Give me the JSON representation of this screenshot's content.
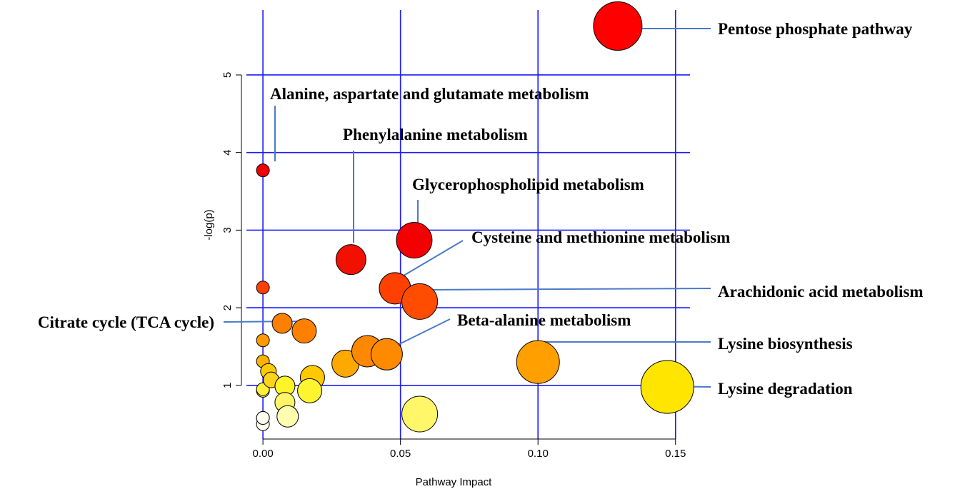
{
  "chart_data": {
    "type": "scatter",
    "title": "",
    "xlabel": "Pathway Impact",
    "ylabel": "-log(p)",
    "xlim": [
      -0.006,
      0.155
    ],
    "ylim": [
      0.4,
      5.8
    ],
    "grid": true,
    "x_ticks": [
      {
        "value": 0.0,
        "label": "0.00"
      },
      {
        "value": 0.05,
        "label": "0.05"
      },
      {
        "value": 0.1,
        "label": "0.10"
      },
      {
        "value": 0.15,
        "label": "0.15"
      }
    ],
    "y_ticks": [
      {
        "value": 1,
        "label": "1"
      },
      {
        "value": 2,
        "label": "2"
      },
      {
        "value": 3,
        "label": "3"
      },
      {
        "value": 4,
        "label": "4"
      },
      {
        "value": 5,
        "label": "5"
      }
    ],
    "points": [
      {
        "x": 0.0,
        "y": 0.5,
        "size": 9,
        "color": "#fffff0"
      },
      {
        "x": 0.0,
        "y": 0.58,
        "size": 9,
        "color": "#fffff0"
      },
      {
        "x": 0.0,
        "y": 0.58,
        "size": 9,
        "color": "#fffff0"
      },
      {
        "x": 0.0,
        "y": 0.93,
        "size": 9,
        "color": "#fff27a"
      },
      {
        "x": 0.0,
        "y": 0.95,
        "size": 9,
        "color": "#fff234"
      },
      {
        "x": 0.0,
        "y": 1.31,
        "size": 9,
        "color": "#ffb200"
      },
      {
        "x": 0.0,
        "y": 1.58,
        "size": 9,
        "color": "#ff9900"
      },
      {
        "x": 0.0,
        "y": 2.26,
        "size": 9,
        "color": "#ff4000"
      },
      {
        "x": 0.0,
        "y": 3.77,
        "size": 9,
        "color": "#f00000"
      },
      {
        "x": 0.002,
        "y": 1.18,
        "size": 11,
        "color": "#ffcb00"
      },
      {
        "x": 0.003,
        "y": 1.07,
        "size": 11,
        "color": "#ffd31a"
      },
      {
        "x": 0.008,
        "y": 0.99,
        "size": 14,
        "color": "#fff32a"
      },
      {
        "x": 0.008,
        "y": 0.78,
        "size": 14,
        "color": "#fff569"
      },
      {
        "x": 0.007,
        "y": 1.8,
        "size": 14,
        "color": "#ff7f00"
      },
      {
        "x": 0.009,
        "y": 0.6,
        "size": 15,
        "color": "#ffffb0"
      },
      {
        "x": 0.015,
        "y": 1.7,
        "size": 17,
        "color": "#ff8000"
      },
      {
        "x": 0.018,
        "y": 1.1,
        "size": 17,
        "color": "#ffc800"
      },
      {
        "x": 0.017,
        "y": 0.93,
        "size": 17,
        "color": "#fff430"
      },
      {
        "x": 0.03,
        "y": 1.28,
        "size": 19,
        "color": "#ffa800"
      },
      {
        "x": 0.032,
        "y": 2.62,
        "size": 21,
        "color": "#f21000"
      },
      {
        "x": 0.038,
        "y": 1.44,
        "size": 22,
        "color": "#ff8800"
      },
      {
        "x": 0.045,
        "y": 1.4,
        "size": 22,
        "color": "#ff8a00"
      },
      {
        "x": 0.048,
        "y": 2.25,
        "size": 22,
        "color": "#ff4000"
      },
      {
        "x": 0.055,
        "y": 2.87,
        "size": 25,
        "color": "#f30000"
      },
      {
        "x": 0.057,
        "y": 2.08,
        "size": 25,
        "color": "#ff4c00"
      },
      {
        "x": 0.057,
        "y": 0.63,
        "size": 25,
        "color": "#fff66a"
      },
      {
        "x": 0.1,
        "y": 1.3,
        "size": 30,
        "color": "#ffa000"
      },
      {
        "x": 0.129,
        "y": 5.63,
        "size": 34,
        "color": "#ff0000"
      },
      {
        "x": 0.147,
        "y": 0.98,
        "size": 37,
        "color": "#ffe500"
      }
    ],
    "annotations": [
      {
        "text": "Pentose phosphate pathway",
        "x": 0.129,
        "y": 5.63
      },
      {
        "text": "Alanine, aspartate and glutamate metabolism",
        "x": 0.001,
        "y": 3.77
      },
      {
        "text": "Phenylalanine metabolism",
        "x": 0.032,
        "y": 2.62
      },
      {
        "text": "Glycerophospholipid metabolism",
        "x": 0.055,
        "y": 2.87
      },
      {
        "text": "Cysteine and methionine metabolism",
        "x": 0.048,
        "y": 2.25
      },
      {
        "text": "Arachidonic acid metabolism",
        "x": 0.057,
        "y": 2.08
      },
      {
        "text": "Citrate cycle (TCA cycle)",
        "x": 0.015,
        "y": 1.7
      },
      {
        "text": "Beta-alanine metabolism",
        "x": 0.045,
        "y": 1.4
      },
      {
        "text": "Lysine biosynthesis",
        "x": 0.1,
        "y": 1.3
      },
      {
        "text": "Lysine degradation",
        "x": 0.147,
        "y": 0.98
      }
    ],
    "colors": {
      "grid": "#1a1aff",
      "axis": "#000000",
      "leader": "#4a7ac8"
    }
  }
}
